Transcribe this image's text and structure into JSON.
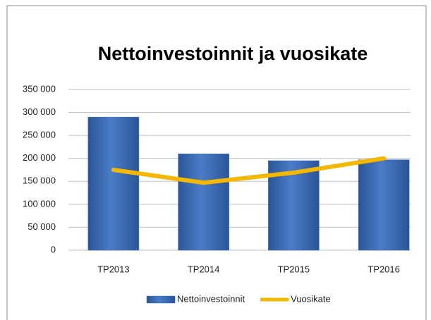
{
  "chart_data": {
    "type": "bar_line",
    "title": "Nettoinvestoinnit ja vuosikate",
    "categories": [
      "TP2013",
      "TP2014",
      "TP2015",
      "TP2016"
    ],
    "series": [
      {
        "name": "Nettoinvestoinnit",
        "type": "bar",
        "color": "#3e6fb8",
        "values": [
          290000,
          210000,
          195000,
          197000
        ]
      },
      {
        "name": "Vuosikate",
        "type": "line",
        "color": "#f5b800",
        "values": [
          175000,
          147000,
          169000,
          200000
        ]
      }
    ],
    "ylim": [
      0,
      350000
    ],
    "yticks": [
      0,
      {
        "value": 50000,
        "label": "50 000"
      },
      {
        "value": 100000,
        "label": "100 000"
      },
      {
        "value": 150000,
        "label": "150 000"
      },
      {
        "value": 200000,
        "label": "200 000"
      },
      {
        "value": 250000,
        "label": "250 000"
      },
      {
        "value": 300000,
        "label": "300 000"
      },
      {
        "value": 350000,
        "label": "350 000"
      }
    ],
    "grid": true,
    "legend": "bottom"
  }
}
